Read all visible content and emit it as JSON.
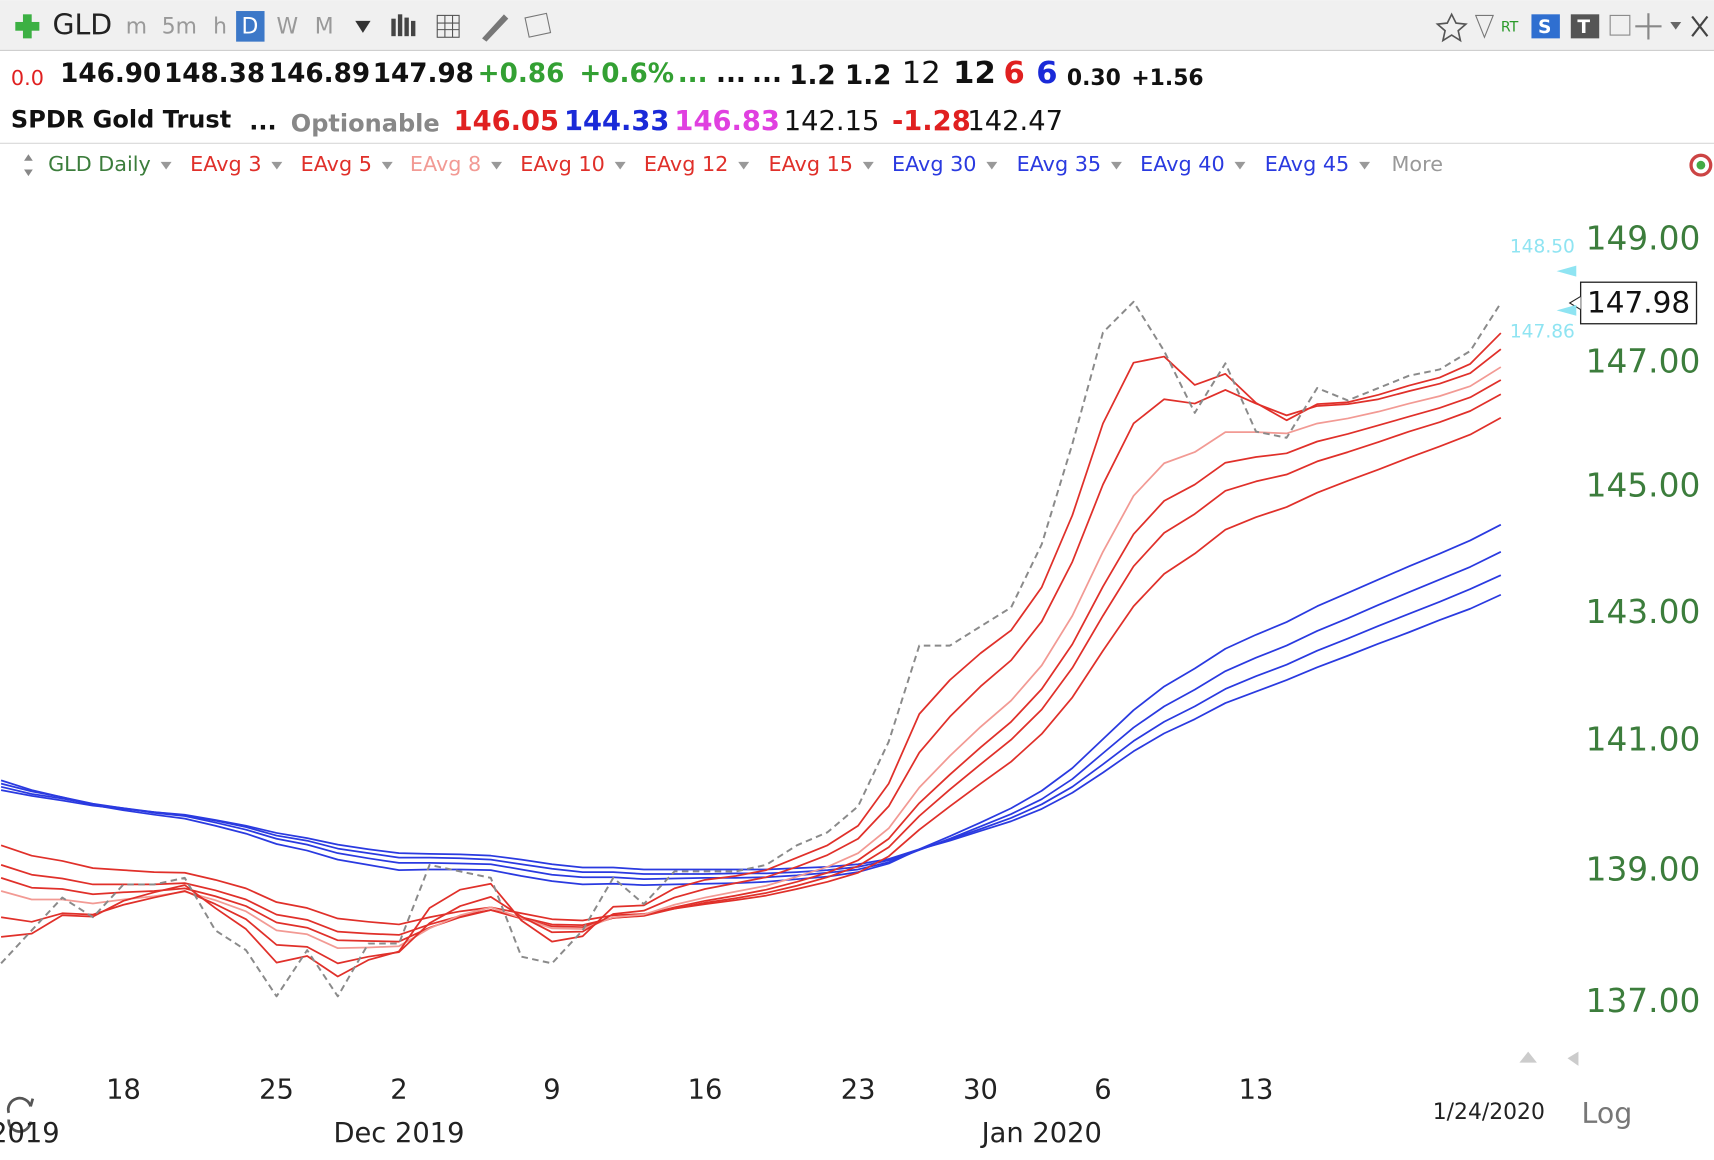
{
  "toolbar": {
    "symbol": "GLD",
    "intervals": [
      "m",
      "5m",
      "h",
      "D",
      "W",
      "M"
    ],
    "rt": "RT",
    "badges": [
      "S",
      "T"
    ]
  },
  "quote": {
    "row1": [
      "0.0",
      "146.90",
      "148.38",
      "146.89",
      "147.98",
      "+0.86",
      "+0.6%",
      "...",
      "...",
      "...",
      "1.2",
      "1.2",
      "12",
      "12",
      "6",
      "6",
      "0.30",
      "+1.56"
    ],
    "row2": [
      "SPDR Gold Trust",
      "...",
      "Optionable",
      "146.05",
      "144.33",
      "146.83",
      "142.15",
      "-1.28",
      "142.47"
    ]
  },
  "chart_data": {
    "type": "line",
    "legend_more": "More",
    "log": true,
    "grid": false,
    "categories": [
      null,
      null,
      null,
      null,
      "18",
      null,
      null,
      null,
      null,
      "25",
      null,
      null,
      null,
      "2",
      null,
      null,
      null,
      null,
      "9",
      null,
      null,
      null,
      null,
      "16",
      null,
      null,
      null,
      null,
      "23",
      null,
      null,
      null,
      "30",
      null,
      null,
      null,
      "6",
      null,
      null,
      null,
      null,
      "13",
      null,
      null,
      null,
      null,
      null,
      null,
      null,
      null
    ],
    "period_labels": [
      {
        "label": "2019",
        "index": 0
      },
      {
        "label": "Dec 2019",
        "index": 13
      },
      {
        "label": "Jan 2020",
        "index": 34
      }
    ],
    "ylim": [
      136.3,
      149.9
    ],
    "yticks": [
      {
        "value": 137,
        "label": "137.00"
      },
      {
        "value": 139,
        "label": "139.00"
      },
      {
        "value": 141,
        "label": "141.00"
      },
      {
        "value": 143,
        "label": "143.00"
      },
      {
        "value": 145,
        "label": "145.00"
      },
      {
        "value": 147,
        "label": "147.00"
      },
      {
        "value": 149,
        "label": "149.00"
      }
    ],
    "side_markers": [
      {
        "value": 148.5,
        "label": "148.50"
      },
      {
        "value": 147.86,
        "label": "147.86"
      }
    ],
    "series": [
      {
        "name": "GLD Daily",
        "color": "#8a8a8a",
        "label_color": "#3c7d3c",
        "dashed": true,
        "values": [
          137.6,
          138.1,
          138.6,
          138.3,
          138.8,
          138.8,
          138.9,
          138.1,
          137.8,
          137.1,
          137.8,
          137.1,
          137.9,
          137.9,
          139.1,
          139.0,
          138.9,
          137.7,
          137.6,
          138.1,
          138.9,
          138.5,
          139.0,
          139.0,
          139.0,
          139.1,
          139.4,
          139.6,
          140.0,
          141.0,
          142.5,
          142.5,
          142.8,
          143.1,
          144.1,
          145.7,
          147.5,
          148.0,
          147.2,
          146.2,
          147.0,
          145.9,
          145.8,
          146.6,
          146.4,
          146.6,
          146.8,
          146.9,
          147.2,
          147.98
        ]
      },
      {
        "name": "EAvg 3",
        "color": "#e0302a",
        "values": [
          138.0,
          138.05,
          138.33,
          138.31,
          138.55,
          138.68,
          138.79,
          138.44,
          138.12,
          137.61,
          137.71,
          137.4,
          137.65,
          137.78,
          138.44,
          138.72,
          138.81,
          138.25,
          137.93,
          138.01,
          138.46,
          138.48,
          138.74,
          138.87,
          138.93,
          139.02,
          139.21,
          139.4,
          139.7,
          140.35,
          141.43,
          141.96,
          142.38,
          142.74,
          143.42,
          144.56,
          146.03,
          147.01,
          147.11,
          146.65,
          146.83,
          146.36,
          146.08,
          146.34,
          146.37,
          146.49,
          146.64,
          146.77,
          146.99,
          147.49
        ]
      },
      {
        "name": "EAvg 5",
        "color": "#e0302a",
        "values": [
          138.3,
          138.23,
          138.36,
          138.34,
          138.49,
          138.6,
          138.7,
          138.5,
          138.27,
          137.88,
          137.85,
          137.6,
          137.7,
          137.77,
          138.21,
          138.47,
          138.61,
          138.31,
          138.07,
          138.08,
          138.35,
          138.4,
          138.6,
          138.73,
          138.82,
          138.91,
          139.07,
          139.25,
          139.5,
          140.0,
          140.83,
          141.39,
          141.86,
          142.27,
          142.88,
          143.82,
          145.05,
          146.03,
          146.42,
          146.35,
          146.57,
          146.35,
          146.16,
          146.31,
          146.34,
          146.42,
          146.55,
          146.67,
          146.84,
          147.23
        ]
      },
      {
        "name": "EAvg 8",
        "color": "#f29a94",
        "values": [
          138.7,
          138.57,
          138.57,
          138.51,
          138.57,
          138.62,
          138.69,
          138.56,
          138.39,
          138.1,
          138.04,
          137.83,
          137.84,
          137.86,
          138.13,
          138.33,
          138.45,
          138.29,
          138.13,
          138.12,
          138.3,
          138.34,
          138.49,
          138.6,
          138.69,
          138.78,
          138.92,
          139.07,
          139.28,
          139.66,
          140.29,
          140.78,
          141.23,
          141.64,
          142.19,
          142.97,
          143.98,
          144.87,
          145.39,
          145.57,
          145.89,
          145.89,
          145.87,
          146.03,
          146.11,
          146.22,
          146.35,
          146.47,
          146.63,
          146.94
        ]
      },
      {
        "name": "EAvg 10",
        "color": "#e0302a",
        "values": [
          138.9,
          138.75,
          138.73,
          138.65,
          138.68,
          138.7,
          138.74,
          138.62,
          138.47,
          138.22,
          138.14,
          137.95,
          137.94,
          137.93,
          138.14,
          138.3,
          138.41,
          138.28,
          138.16,
          138.15,
          138.29,
          138.33,
          138.45,
          138.55,
          138.63,
          138.72,
          138.84,
          138.98,
          139.17,
          139.5,
          140.05,
          140.49,
          140.91,
          141.31,
          141.82,
          142.52,
          143.43,
          144.26,
          144.79,
          145.05,
          145.4,
          145.49,
          145.55,
          145.74,
          145.86,
          146.0,
          146.14,
          146.28,
          146.45,
          146.73
        ]
      },
      {
        "name": "EAvg 12",
        "color": "#e0302a",
        "values": [
          139.1,
          138.95,
          138.89,
          138.8,
          138.8,
          138.8,
          138.82,
          138.71,
          138.57,
          138.34,
          138.26,
          138.08,
          138.05,
          138.03,
          138.19,
          138.32,
          138.41,
          138.3,
          138.19,
          138.18,
          138.29,
          138.32,
          138.43,
          138.52,
          138.59,
          138.67,
          138.78,
          138.91,
          139.08,
          139.37,
          139.85,
          140.26,
          140.65,
          141.03,
          141.5,
          142.15,
          142.97,
          143.75,
          144.28,
          144.58,
          144.95,
          145.1,
          145.21,
          145.42,
          145.57,
          145.73,
          145.9,
          146.05,
          146.23,
          146.5
        ]
      },
      {
        "name": "EAvg 15",
        "color": "#e0302a",
        "values": [
          139.4,
          139.24,
          139.16,
          139.05,
          139.02,
          138.99,
          138.98,
          138.87,
          138.74,
          138.53,
          138.44,
          138.28,
          138.23,
          138.19,
          138.3,
          138.39,
          138.45,
          138.36,
          138.27,
          138.25,
          138.33,
          138.35,
          138.43,
          138.5,
          138.56,
          138.63,
          138.73,
          138.84,
          138.98,
          139.23,
          139.64,
          140.0,
          140.35,
          140.69,
          141.12,
          141.69,
          142.42,
          143.12,
          143.63,
          143.95,
          144.33,
          144.53,
          144.69,
          144.92,
          145.11,
          145.29,
          145.48,
          145.66,
          145.85,
          146.12
        ]
      },
      {
        "name": "EAvg 30",
        "color": "#2a3ae0",
        "values": [
          140.4,
          140.25,
          140.14,
          140.02,
          139.94,
          139.87,
          139.81,
          139.7,
          139.58,
          139.42,
          139.32,
          139.18,
          139.1,
          139.02,
          139.03,
          139.03,
          139.02,
          138.93,
          138.85,
          138.8,
          138.81,
          138.79,
          138.8,
          138.81,
          138.82,
          138.84,
          138.88,
          138.92,
          138.99,
          139.12,
          139.34,
          139.54,
          139.75,
          139.97,
          140.24,
          140.59,
          141.04,
          141.49,
          141.86,
          142.14,
          142.45,
          142.67,
          142.87,
          143.12,
          143.33,
          143.54,
          143.75,
          143.95,
          144.16,
          144.41
        ]
      },
      {
        "name": "EAvg 35",
        "color": "#2a3ae0",
        "values": [
          140.35,
          140.23,
          140.14,
          140.04,
          139.97,
          139.9,
          139.85,
          139.75,
          139.64,
          139.5,
          139.41,
          139.28,
          139.2,
          139.13,
          139.13,
          139.12,
          139.11,
          139.03,
          138.95,
          138.91,
          138.91,
          138.88,
          138.89,
          138.9,
          138.9,
          138.91,
          138.94,
          138.98,
          139.03,
          139.14,
          139.33,
          139.5,
          139.69,
          139.88,
          140.11,
          140.42,
          140.82,
          141.22,
          141.55,
          141.81,
          142.1,
          142.31,
          142.5,
          142.73,
          142.93,
          143.14,
          143.34,
          143.54,
          143.74,
          143.98
        ]
      },
      {
        "name": "EAvg 40",
        "color": "#2a3ae0",
        "values": [
          140.3,
          140.19,
          140.12,
          140.03,
          139.97,
          139.91,
          139.86,
          139.78,
          139.68,
          139.55,
          139.47,
          139.35,
          139.28,
          139.21,
          139.21,
          139.2,
          139.18,
          139.11,
          139.04,
          138.99,
          138.99,
          138.96,
          138.96,
          138.96,
          138.97,
          138.97,
          138.99,
          139.02,
          139.07,
          139.17,
          139.33,
          139.49,
          139.65,
          139.82,
          140.03,
          140.3,
          140.65,
          141.01,
          141.31,
          141.55,
          141.82,
          142.02,
          142.2,
          142.42,
          142.61,
          142.81,
          143.0,
          143.19,
          143.39,
          143.61
        ]
      },
      {
        "name": "EAvg 45",
        "color": "#2a3ae0",
        "values": [
          140.25,
          140.16,
          140.09,
          140.01,
          139.96,
          139.91,
          139.87,
          139.79,
          139.7,
          139.59,
          139.51,
          139.41,
          139.34,
          139.28,
          139.27,
          139.26,
          139.24,
          139.18,
          139.11,
          139.06,
          139.06,
          139.03,
          139.03,
          139.03,
          139.03,
          139.03,
          139.05,
          139.07,
          139.11,
          139.19,
          139.34,
          139.47,
          139.62,
          139.77,
          139.96,
          140.21,
          140.52,
          140.85,
          141.13,
          141.35,
          141.6,
          141.78,
          141.96,
          142.16,
          142.34,
          142.53,
          142.71,
          142.9,
          143.08,
          143.3
        ]
      }
    ]
  },
  "footer": {
    "date": "1/24/2020",
    "scale": "Log"
  }
}
